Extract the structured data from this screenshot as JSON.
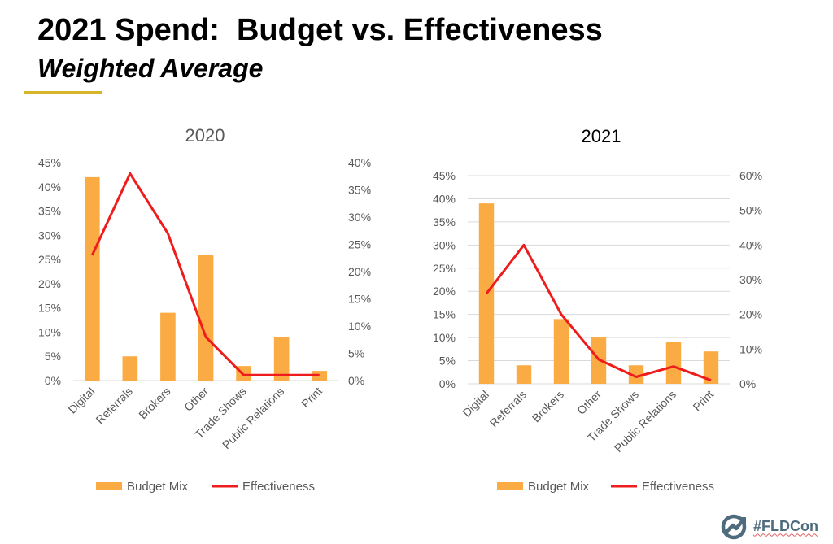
{
  "slide": {
    "title": "2021 Spend:  Budget vs. Effectiveness",
    "subtitle": "Weighted Average",
    "accent_color": "#d6b52a",
    "hashtag": "#FLDCon",
    "logo_color": "#4f6b7e"
  },
  "colors": {
    "bar": "#fbab43",
    "line": "#ee1c1c",
    "grid": "#d9d9d9",
    "tick": "#595959"
  },
  "chart_data": [
    {
      "type": "bar+line",
      "title": "2020",
      "categories": [
        "Digital",
        "Referrals",
        "Brokers",
        "Other",
        "Trade Shows",
        "Public Relations",
        "Print"
      ],
      "series": [
        {
          "name": "Budget Mix",
          "type": "bar",
          "axis": "left",
          "values": [
            42,
            5,
            14,
            26,
            3,
            9,
            2
          ]
        },
        {
          "name": "Effectiveness",
          "type": "line",
          "axis": "right",
          "values": [
            23,
            38,
            27,
            8,
            1,
            1,
            1
          ]
        }
      ],
      "y_left": {
        "min": 0,
        "max": 45,
        "step": 5,
        "ticks": [
          "0%",
          "5%",
          "10%",
          "15%",
          "20%",
          "25%",
          "30%",
          "35%",
          "40%",
          "45%"
        ]
      },
      "y_right": {
        "min": 0,
        "max": 40,
        "step": 5,
        "ticks": [
          "0%",
          "5%",
          "10%",
          "15%",
          "20%",
          "25%",
          "30%",
          "35%",
          "40%"
        ]
      },
      "grid": false,
      "legend": "bottom"
    },
    {
      "type": "bar+line",
      "title": "2021",
      "categories": [
        "Digital",
        "Referrals",
        "Brokers",
        "Other",
        "Trade Shows",
        "Public Relations",
        "Print"
      ],
      "series": [
        {
          "name": "Budget Mix",
          "type": "bar",
          "axis": "left",
          "values": [
            39,
            4,
            14,
            10,
            4,
            9,
            7
          ]
        },
        {
          "name": "Effectiveness",
          "type": "line",
          "axis": "right",
          "values": [
            26,
            40,
            20,
            7,
            2,
            5,
            1
          ]
        }
      ],
      "y_left": {
        "min": 0,
        "max": 45,
        "step": 5,
        "ticks": [
          "0%",
          "5%",
          "10%",
          "15%",
          "20%",
          "25%",
          "30%",
          "35%",
          "40%",
          "45%"
        ]
      },
      "y_right": {
        "min": 0,
        "max": 60,
        "step": 10,
        "ticks": [
          "0%",
          "10%",
          "20%",
          "30%",
          "40%",
          "50%",
          "60%"
        ]
      },
      "grid": true,
      "legend": "bottom"
    }
  ]
}
